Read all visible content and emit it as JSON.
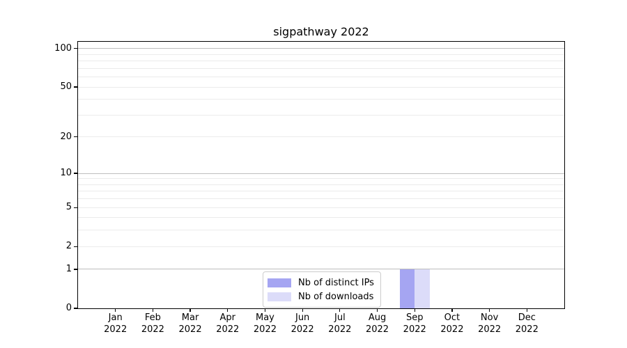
{
  "chart_data": {
    "type": "bar",
    "title": "sigpathway 2022",
    "x": [
      {
        "month": "Jan",
        "year": "2022"
      },
      {
        "month": "Feb",
        "year": "2022"
      },
      {
        "month": "Mar",
        "year": "2022"
      },
      {
        "month": "Apr",
        "year": "2022"
      },
      {
        "month": "May",
        "year": "2022"
      },
      {
        "month": "Jun",
        "year": "2022"
      },
      {
        "month": "Jul",
        "year": "2022"
      },
      {
        "month": "Aug",
        "year": "2022"
      },
      {
        "month": "Sep",
        "year": "2022"
      },
      {
        "month": "Oct",
        "year": "2022"
      },
      {
        "month": "Nov",
        "year": "2022"
      },
      {
        "month": "Dec",
        "year": "2022"
      }
    ],
    "series": [
      {
        "name": "Nb of distinct IPs",
        "color": "#a5a5f2",
        "values": [
          0,
          0,
          0,
          0,
          0,
          0,
          0,
          0,
          1,
          0,
          0,
          0
        ]
      },
      {
        "name": "Nb of downloads",
        "color": "#dcdcf9",
        "values": [
          0,
          0,
          0,
          0,
          0,
          0,
          0,
          0,
          1,
          0,
          0,
          0
        ]
      }
    ],
    "y_axis": {
      "scale": "log1p",
      "ticks": [
        100,
        50,
        20,
        10,
        5,
        2,
        1,
        0
      ],
      "max": 113,
      "major_gridlines": [
        1,
        10,
        100
      ],
      "minor_gridlines": [
        2,
        3,
        4,
        5,
        6,
        7,
        8,
        9,
        20,
        30,
        40,
        50,
        60,
        70,
        80,
        90
      ]
    },
    "grid_colors": {
      "major": "#bdbdbd",
      "minor": "#ebebeb"
    },
    "legend": {
      "position": "lower center"
    }
  }
}
